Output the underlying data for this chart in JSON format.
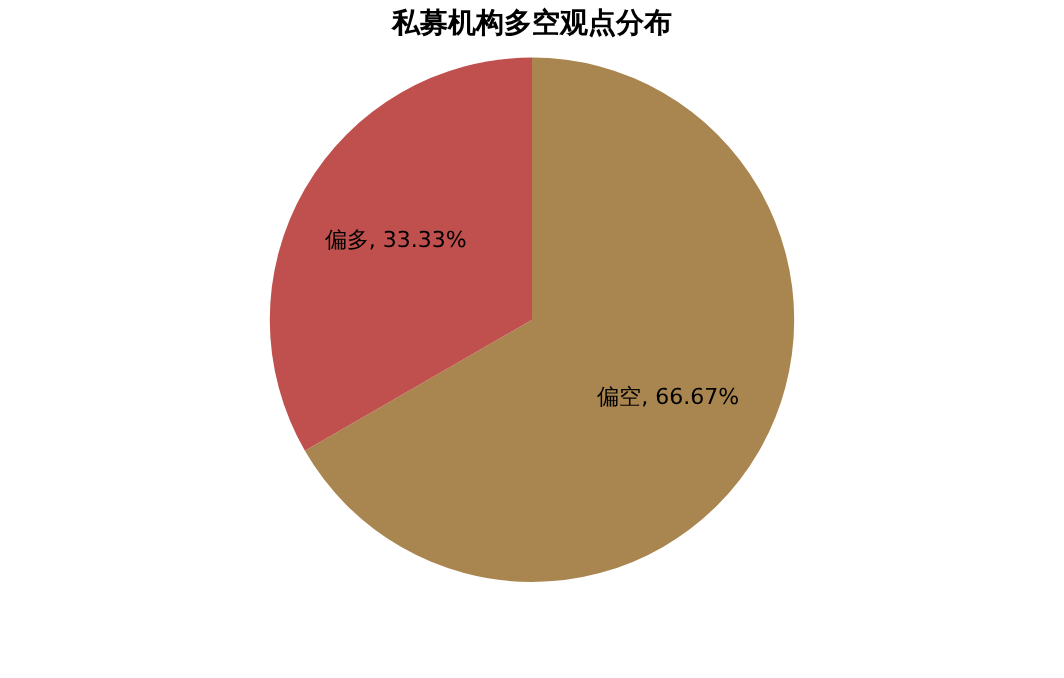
{
  "chart_data": {
    "type": "pie",
    "title": "私募机构多空观点分布",
    "categories": [
      "偏空",
      "偏多"
    ],
    "values": [
      66.67,
      33.33
    ],
    "value_labels": [
      ", 66.67%",
      ", 33.33%"
    ],
    "colors": [
      "#a9854f",
      "#c0504d"
    ],
    "legend": false
  }
}
